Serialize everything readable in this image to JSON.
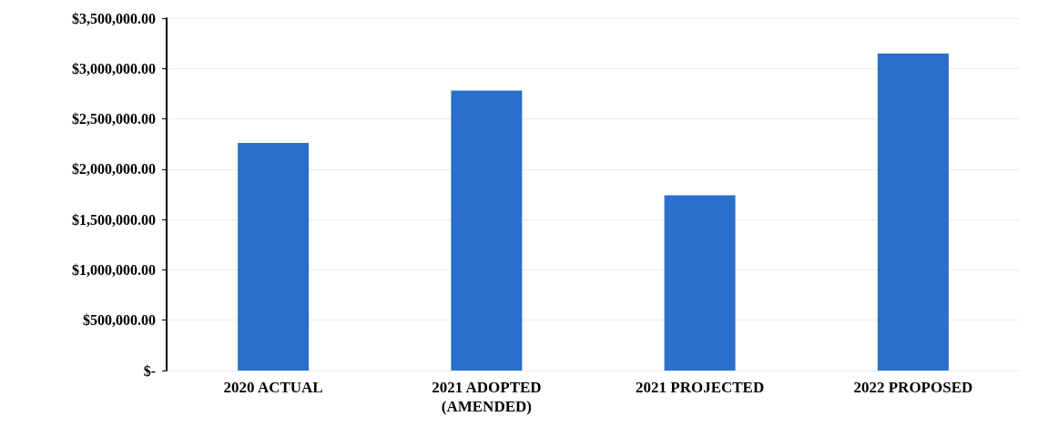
{
  "chart_data": {
    "type": "bar",
    "categories": [
      "2020 ACTUAL",
      "2021 ADOPTED\n(AMENDED)",
      "2021 PROJECTED",
      "2022 PROPOSED"
    ],
    "values": [
      2260000,
      2780000,
      1740000,
      3150000
    ],
    "color": "#2a6fca",
    "ylim": [
      0,
      3500000
    ],
    "yticks": [
      {
        "value": 0,
        "label": "$-"
      },
      {
        "value": 500000,
        "label": "$500,000.00"
      },
      {
        "value": 1000000,
        "label": "$1,000,000.00"
      },
      {
        "value": 1500000,
        "label": "$1,500,000.00"
      },
      {
        "value": 2000000,
        "label": "$2,000,000.00"
      },
      {
        "value": 2500000,
        "label": "$2,500,000.00"
      },
      {
        "value": 3000000,
        "label": "$3,000,000.00"
      },
      {
        "value": 3500000,
        "label": "$3,500,000.00"
      }
    ],
    "grid": "y"
  }
}
